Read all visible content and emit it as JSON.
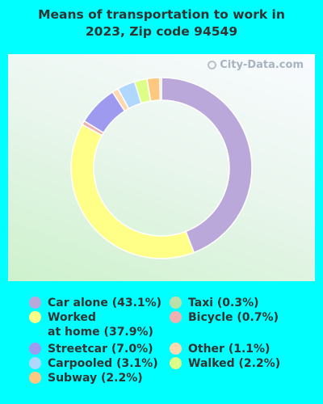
{
  "watermark": "City-Data.com",
  "chart_data": {
    "type": "pie",
    "style": "donut",
    "title": "Means of transportation to work in 2023, Zip code 94549",
    "unit": "%",
    "slices": [
      {
        "name": "Car alone",
        "value": 43.1,
        "color": "#BBA8DA",
        "label": "Car alone (43.1%)"
      },
      {
        "name": "Worked at home",
        "value": 37.9,
        "color": "#FFFF88",
        "label": "Worked\nat home (37.9%)"
      },
      {
        "name": "Bicycle",
        "value": 0.7,
        "color": "#F0B0B0",
        "label": "Bicycle (0.7%)"
      },
      {
        "name": "Streetcar",
        "value": 7.0,
        "color": "#9E9AF0",
        "label": "Streetcar (7.0%)"
      },
      {
        "name": "Other",
        "value": 1.1,
        "color": "#FFD8B0",
        "label": "Other (1.1%)"
      },
      {
        "name": "Carpooled",
        "value": 3.1,
        "color": "#B0D8FF",
        "label": "Carpooled (3.1%)"
      },
      {
        "name": "Walked",
        "value": 2.2,
        "color": "#DDFF88",
        "label": "Walked (2.2%)"
      },
      {
        "name": "Subway",
        "value": 2.2,
        "color": "#FFC880",
        "label": "Subway (2.2%)"
      },
      {
        "name": "Taxi",
        "value": 0.3,
        "color": "#BDE0A8",
        "label": "Taxi (0.3%)"
      }
    ],
    "legend_order": [
      "Car alone",
      "Worked at home",
      "Streetcar",
      "Carpooled",
      "Subway",
      "Taxi",
      "Bicycle",
      "Other",
      "Walked"
    ]
  }
}
